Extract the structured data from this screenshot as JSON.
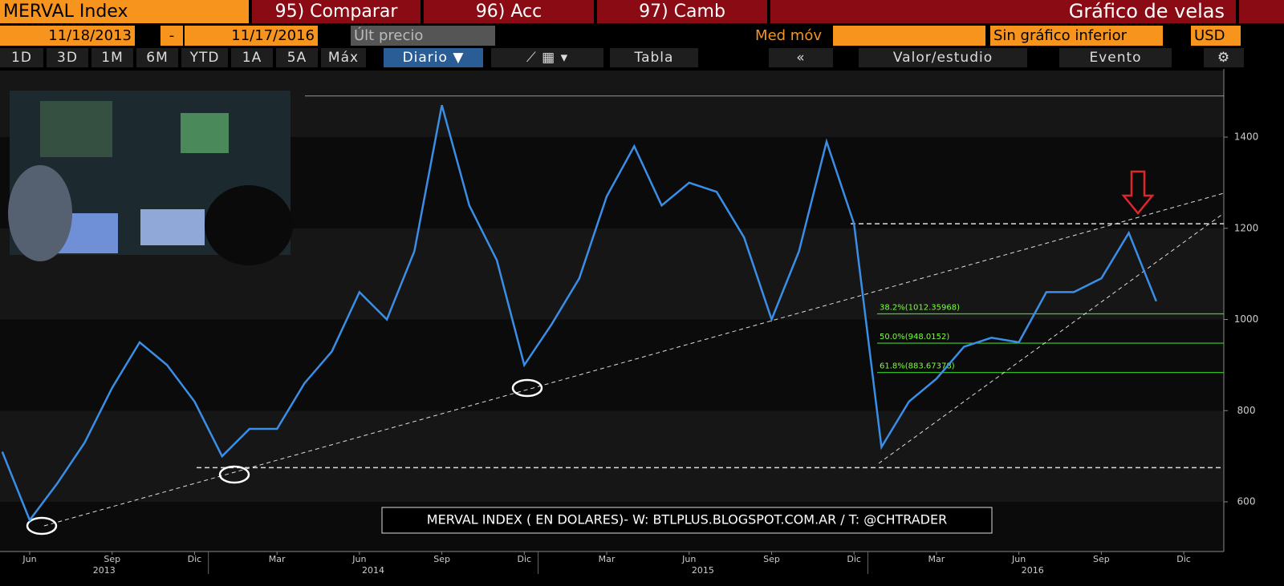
{
  "header": {
    "ticker": "MERVAL Index",
    "buttons": [
      "95) Comparar",
      "96) Acc",
      "97) Camb"
    ],
    "chart_kind": "Gráfico de velas"
  },
  "controls": {
    "start_date": "11/18/2013",
    "separator": "-",
    "end_date": "11/17/2016",
    "price_field": "Últ precio",
    "moving_avg": "Med móv",
    "lower_chart": "Sin gráfico inferior",
    "currency": "USD"
  },
  "toolbar": {
    "periods": [
      "1D",
      "3D",
      "1M",
      "6M",
      "YTD",
      "1A",
      "5A",
      "Máx"
    ],
    "frequency": "Diario ▼",
    "table": "Tabla",
    "back": "«",
    "study": "Valor/estudio",
    "event": "Evento"
  },
  "chart_data": {
    "type": "line",
    "color": "#3a8ee6",
    "x": [
      "2013-05",
      "2013-06",
      "2013-07",
      "2013-08",
      "2013-09",
      "2013-10",
      "2013-11",
      "2013-12",
      "2014-01",
      "2014-02",
      "2014-03",
      "2014-04",
      "2014-05",
      "2014-06",
      "2014-07",
      "2014-08",
      "2014-09",
      "2014-10",
      "2014-11",
      "2014-12",
      "2015-01",
      "2015-02",
      "2015-03",
      "2015-04",
      "2015-05",
      "2015-06",
      "2015-07",
      "2015-08",
      "2015-09",
      "2015-10",
      "2015-11",
      "2015-12",
      "2016-01",
      "2016-02",
      "2016-03",
      "2016-04",
      "2016-05",
      "2016-06",
      "2016-07",
      "2016-08",
      "2016-09",
      "2016-10",
      "2016-11"
    ],
    "values": [
      710,
      560,
      640,
      730,
      850,
      950,
      900,
      820,
      700,
      760,
      760,
      860,
      930,
      1060,
      1000,
      1150,
      1470,
      1250,
      1130,
      900,
      990,
      1090,
      1270,
      1380,
      1250,
      1300,
      1280,
      1180,
      1000,
      1150,
      1390,
      1210,
      720,
      820,
      870,
      940,
      960,
      950,
      1060,
      1060,
      1090,
      1190,
      1040
    ],
    "ylim": [
      491,
      1546
    ],
    "yticks": [
      600,
      800,
      1000,
      1200,
      1400
    ],
    "xticks": [
      {
        "value": "2013-06",
        "label": "Jun"
      },
      {
        "value": "2013-09",
        "label": "Sep"
      },
      {
        "value": "2013-12",
        "label": "Dic"
      },
      {
        "value": "2014-03",
        "label": "Mar"
      },
      {
        "value": "2014-06",
        "label": "Jun"
      },
      {
        "value": "2014-09",
        "label": "Sep"
      },
      {
        "value": "2014-12",
        "label": "Dic"
      },
      {
        "value": "2015-03",
        "label": "Mar"
      },
      {
        "value": "2015-06",
        "label": "Jun"
      },
      {
        "value": "2015-09",
        "label": "Sep"
      },
      {
        "value": "2015-12",
        "label": "Dic"
      },
      {
        "value": "2016-03",
        "label": "Mar"
      },
      {
        "value": "2016-06",
        "label": "Jun"
      },
      {
        "value": "2016-09",
        "label": "Sep"
      },
      {
        "value": "2016-12",
        "label": "Dic"
      }
    ],
    "years": [
      "2013",
      "2014",
      "2015",
      "2016"
    ],
    "fib_levels": [
      {
        "value": 1012.35968,
        "label": "38.2%(1012.35968)"
      },
      {
        "value": 948.0152,
        "label": "50.0%(948.0152)"
      },
      {
        "value": 883.67378,
        "label": "61.8%(883.67378)"
      }
    ],
    "reference_lines": [
      1490,
      1210,
      675
    ],
    "watermark": "MERVAL INDEX ( EN DOLARES)- W: BTLPLUS.BLOGSPOT.COM.AR / T: @CHTRADER"
  }
}
